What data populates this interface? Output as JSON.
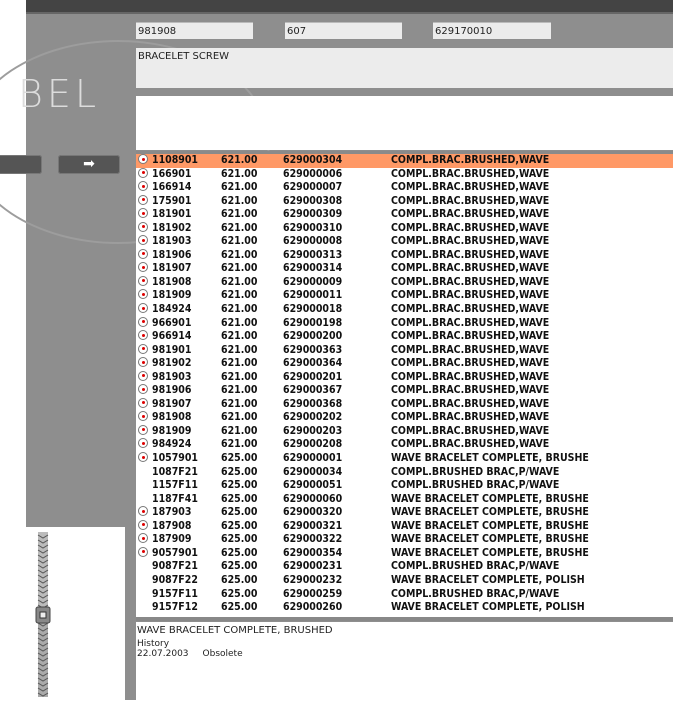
{
  "header": {
    "field1": "981908",
    "field2": "607",
    "field3": "629170010",
    "description": "BRACELET SCREW"
  },
  "logo_text": "BEL",
  "nav": {
    "next_icon": "arrow-right-icon"
  },
  "colors": {
    "selected_row": "#ff9966",
    "radio_dot": "#dd0000"
  },
  "rows": [
    {
      "radio": true,
      "ref": "1108901",
      "price": "621.00",
      "code": "629000304",
      "desc": "COMPL.BRAC.BRUSHED,WAVE",
      "selected": true
    },
    {
      "radio": true,
      "ref": "166901",
      "price": "621.00",
      "code": "629000006",
      "desc": "COMPL.BRAC.BRUSHED,WAVE"
    },
    {
      "radio": true,
      "ref": "166914",
      "price": "621.00",
      "code": "629000007",
      "desc": "COMPL.BRAC.BRUSHED,WAVE"
    },
    {
      "radio": true,
      "ref": "175901",
      "price": "621.00",
      "code": "629000308",
      "desc": "COMPL.BRAC.BRUSHED,WAVE"
    },
    {
      "radio": true,
      "ref": "181901",
      "price": "621.00",
      "code": "629000309",
      "desc": "COMPL.BRAC.BRUSHED,WAVE"
    },
    {
      "radio": true,
      "ref": "181902",
      "price": "621.00",
      "code": "629000310",
      "desc": "COMPL.BRAC.BRUSHED,WAVE"
    },
    {
      "radio": true,
      "ref": "181903",
      "price": "621.00",
      "code": "629000008",
      "desc": "COMPL.BRAC.BRUSHED,WAVE"
    },
    {
      "radio": true,
      "ref": "181906",
      "price": "621.00",
      "code": "629000313",
      "desc": "COMPL.BRAC.BRUSHED,WAVE"
    },
    {
      "radio": true,
      "ref": "181907",
      "price": "621.00",
      "code": "629000314",
      "desc": "COMPL.BRAC.BRUSHED,WAVE"
    },
    {
      "radio": true,
      "ref": "181908",
      "price": "621.00",
      "code": "629000009",
      "desc": "COMPL.BRAC.BRUSHED,WAVE"
    },
    {
      "radio": true,
      "ref": "181909",
      "price": "621.00",
      "code": "629000011",
      "desc": "COMPL.BRAC.BRUSHED,WAVE"
    },
    {
      "radio": true,
      "ref": "184924",
      "price": "621.00",
      "code": "629000018",
      "desc": "COMPL.BRAC.BRUSHED,WAVE"
    },
    {
      "radio": true,
      "ref": "966901",
      "price": "621.00",
      "code": "629000198",
      "desc": "COMPL.BRAC.BRUSHED,WAVE"
    },
    {
      "radio": true,
      "ref": "966914",
      "price": "621.00",
      "code": "629000200",
      "desc": "COMPL.BRAC.BRUSHED,WAVE"
    },
    {
      "radio": true,
      "ref": "981901",
      "price": "621.00",
      "code": "629000363",
      "desc": "COMPL.BRAC.BRUSHED,WAVE"
    },
    {
      "radio": true,
      "ref": "981902",
      "price": "621.00",
      "code": "629000364",
      "desc": "COMPL.BRAC.BRUSHED,WAVE"
    },
    {
      "radio": true,
      "ref": "981903",
      "price": "621.00",
      "code": "629000201",
      "desc": "COMPL.BRAC.BRUSHED,WAVE"
    },
    {
      "radio": true,
      "ref": "981906",
      "price": "621.00",
      "code": "629000367",
      "desc": "COMPL.BRAC.BRUSHED,WAVE"
    },
    {
      "radio": true,
      "ref": "981907",
      "price": "621.00",
      "code": "629000368",
      "desc": "COMPL.BRAC.BRUSHED,WAVE"
    },
    {
      "radio": true,
      "ref": "981908",
      "price": "621.00",
      "code": "629000202",
      "desc": "COMPL.BRAC.BRUSHED,WAVE"
    },
    {
      "radio": true,
      "ref": "981909",
      "price": "621.00",
      "code": "629000203",
      "desc": "COMPL.BRAC.BRUSHED,WAVE"
    },
    {
      "radio": true,
      "ref": "984924",
      "price": "621.00",
      "code": "629000208",
      "desc": "COMPL.BRAC.BRUSHED,WAVE"
    },
    {
      "radio": true,
      "ref": "1057901",
      "price": "625.00",
      "code": "629000001",
      "desc": "WAVE BRACELET COMPLETE, BRUSHE"
    },
    {
      "radio": false,
      "ref": "1087F21",
      "price": "625.00",
      "code": "629000034",
      "desc": "COMPL.BRUSHED BRAC,P/WAVE"
    },
    {
      "radio": false,
      "ref": "1157F11",
      "price": "625.00",
      "code": "629000051",
      "desc": "COMPL.BRUSHED BRAC,P/WAVE"
    },
    {
      "radio": false,
      "ref": "1187F41",
      "price": "625.00",
      "code": "629000060",
      "desc": "WAVE BRACELET COMPLETE, BRUSHE"
    },
    {
      "radio": true,
      "ref": "187903",
      "price": "625.00",
      "code": "629000320",
      "desc": "WAVE BRACELET COMPLETE, BRUSHE"
    },
    {
      "radio": true,
      "ref": "187908",
      "price": "625.00",
      "code": "629000321",
      "desc": "WAVE BRACELET COMPLETE, BRUSHE"
    },
    {
      "radio": true,
      "ref": "187909",
      "price": "625.00",
      "code": "629000322",
      "desc": "WAVE BRACELET COMPLETE, BRUSHE"
    },
    {
      "radio": true,
      "ref": "9057901",
      "price": "625.00",
      "code": "629000354",
      "desc": "WAVE BRACELET COMPLETE, BRUSHE"
    },
    {
      "radio": false,
      "ref": "9087F21",
      "price": "625.00",
      "code": "629000231",
      "desc": "COMPL.BRUSHED BRAC,P/WAVE"
    },
    {
      "radio": false,
      "ref": "9087F22",
      "price": "625.00",
      "code": "629000232",
      "desc": "WAVE BRACELET COMPLETE, POLISH"
    },
    {
      "radio": false,
      "ref": "9157F11",
      "price": "625.00",
      "code": "629000259",
      "desc": "COMPL.BRUSHED BRAC,P/WAVE"
    },
    {
      "radio": false,
      "ref": "9157F12",
      "price": "625.00",
      "code": "629000260",
      "desc": "WAVE BRACELET COMPLETE, POLISH"
    }
  ],
  "detail": {
    "title": "WAVE BRACELET COMPLETE, BRUSHED",
    "history_label": "History",
    "history_date": "22.07.2003",
    "history_status": "Obsolete"
  }
}
